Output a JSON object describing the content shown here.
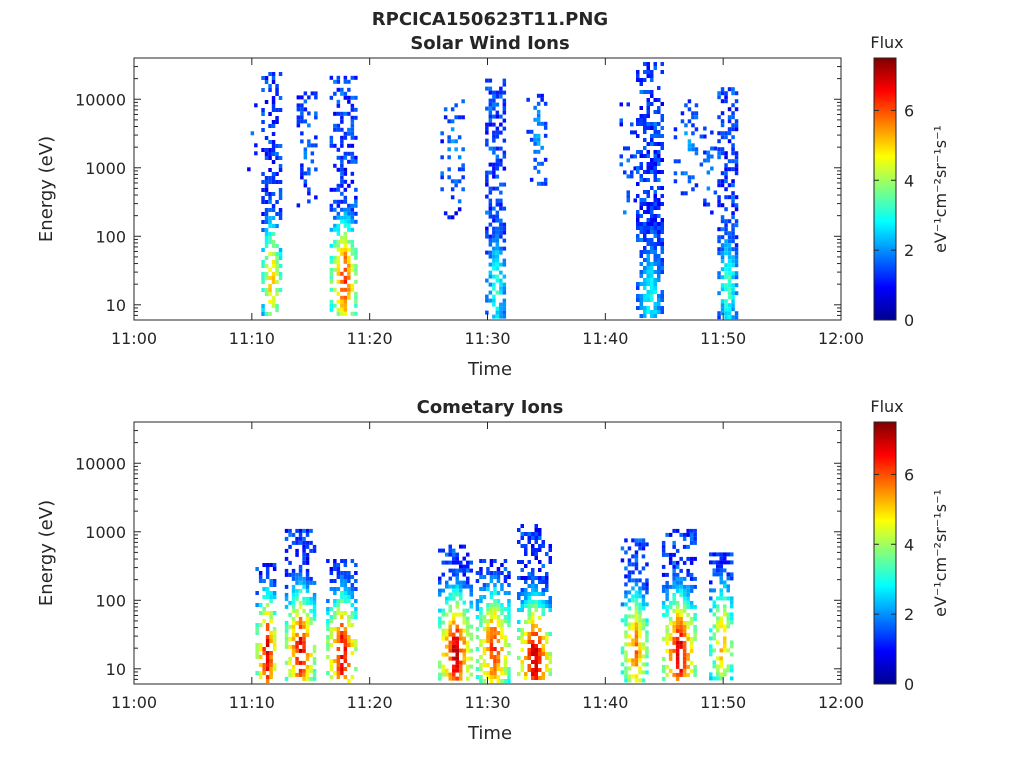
{
  "figure": {
    "title": "RPCICA150623T11.PNG"
  },
  "colorscale": {
    "name": "jet",
    "stops": [
      "#00008f",
      "#0000ff",
      "#0080ff",
      "#00ffff",
      "#80ff80",
      "#ffff00",
      "#ff8000",
      "#ff0000",
      "#800000"
    ]
  },
  "chart_data": [
    {
      "type": "heatmap",
      "title": "Solar Wind Ions",
      "xlabel": "Time",
      "ylabel": "Energy (eV)",
      "xlim_minutes": [
        0,
        60
      ],
      "x_ticks": [
        "11:00",
        "11:10",
        "11:20",
        "11:30",
        "11:40",
        "11:50",
        "12:00"
      ],
      "yscale": "log",
      "ylim": [
        6,
        40000
      ],
      "y_ticks": [
        {
          "value": 10,
          "label": "10"
        },
        {
          "value": 100,
          "label": "100"
        },
        {
          "value": 1000,
          "label": "1000"
        },
        {
          "value": 10000,
          "label": "10000"
        }
      ],
      "colorbar": {
        "title": "Flux",
        "label": "eV⁻¹cm⁻²sr⁻¹s⁻¹",
        "min": 0,
        "max": 7.5,
        "ticks": [
          "0",
          "2",
          "4",
          "6"
        ]
      },
      "bursts": [
        {
          "t0": 10.8,
          "t1": 12.3,
          "emin": 7,
          "emax": 25000,
          "peak_energy": 25,
          "peak_value": 5.5,
          "density": 0.75
        },
        {
          "t0": 13.8,
          "t1": 15.5,
          "emin": 300,
          "emax": 13000,
          "peak_energy": 2000,
          "peak_value": 2.0,
          "density": 0.3
        },
        {
          "t0": 16.6,
          "t1": 18.8,
          "emin": 7,
          "emax": 22000,
          "peak_energy": 25,
          "peak_value": 6.5,
          "density": 0.75
        },
        {
          "t0": 26.0,
          "t1": 28.0,
          "emin": 200,
          "emax": 10000,
          "peak_energy": 2000,
          "peak_value": 2.2,
          "density": 0.25
        },
        {
          "t0": 29.8,
          "t1": 31.5,
          "emin": 7,
          "emax": 20000,
          "peak_energy": 20,
          "peak_value": 3.2,
          "density": 0.8
        },
        {
          "t0": 33.3,
          "t1": 35.0,
          "emin": 500,
          "emax": 12000,
          "peak_energy": 3000,
          "peak_value": 2.2,
          "density": 0.3
        },
        {
          "t0": 41.2,
          "t1": 42.4,
          "emin": 200,
          "emax": 9000,
          "peak_energy": 1000,
          "peak_value": 1.8,
          "density": 0.2
        },
        {
          "t0": 42.6,
          "t1": 44.8,
          "emin": 7,
          "emax": 35000,
          "peak_energy": 15,
          "peak_value": 3.0,
          "density": 0.85
        },
        {
          "t0": 45.8,
          "t1": 47.8,
          "emin": 400,
          "emax": 10000,
          "peak_energy": 2000,
          "peak_value": 2.2,
          "density": 0.3
        },
        {
          "t0": 48.0,
          "t1": 49.4,
          "emin": 200,
          "emax": 6000,
          "peak_energy": 1000,
          "peak_value": 2.0,
          "density": 0.2
        },
        {
          "t0": 49.5,
          "t1": 51.0,
          "emin": 7,
          "emax": 15000,
          "peak_energy": 20,
          "peak_value": 3.5,
          "density": 0.8
        },
        {
          "t0": 9.3,
          "t1": 10.5,
          "emin": 1000,
          "emax": 10000,
          "peak_energy": 3000,
          "peak_value": 1.5,
          "density": 0.05
        }
      ]
    },
    {
      "type": "heatmap",
      "title": "Cometary Ions",
      "xlabel": "Time",
      "ylabel": "Energy (eV)",
      "xlim_minutes": [
        0,
        60
      ],
      "x_ticks": [
        "11:00",
        "11:10",
        "11:20",
        "11:30",
        "11:40",
        "11:50",
        "12:00"
      ],
      "yscale": "log",
      "ylim": [
        6,
        40000
      ],
      "y_ticks": [
        {
          "value": 10,
          "label": "10"
        },
        {
          "value": 100,
          "label": "100"
        },
        {
          "value": 1000,
          "label": "1000"
        },
        {
          "value": 10000,
          "label": "10000"
        }
      ],
      "colorbar": {
        "title": "Flux",
        "label": "eV⁻¹cm⁻²sr⁻¹s⁻¹",
        "min": 0,
        "max": 7.5,
        "ticks": [
          "0",
          "2",
          "4",
          "6"
        ]
      },
      "bursts": [
        {
          "t0": 10.3,
          "t1": 12.0,
          "emin": 7,
          "emax": 350,
          "peak_energy": 18,
          "peak_value": 7.0,
          "density": 0.75
        },
        {
          "t0": 12.8,
          "t1": 15.2,
          "emin": 7,
          "emax": 1100,
          "peak_energy": 20,
          "peak_value": 7.0,
          "density": 0.7
        },
        {
          "t0": 16.3,
          "t1": 18.8,
          "emin": 7,
          "emax": 400,
          "peak_energy": 18,
          "peak_value": 7.0,
          "density": 0.7
        },
        {
          "t0": 25.8,
          "t1": 28.5,
          "emin": 7,
          "emax": 650,
          "peak_energy": 18,
          "peak_value": 7.2,
          "density": 0.8
        },
        {
          "t0": 29.0,
          "t1": 31.8,
          "emin": 7,
          "emax": 400,
          "peak_energy": 20,
          "peak_value": 6.5,
          "density": 0.75
        },
        {
          "t0": 32.5,
          "t1": 35.2,
          "emin": 7,
          "emax": 1300,
          "peak_energy": 15,
          "peak_value": 7.2,
          "density": 0.75
        },
        {
          "t0": 41.3,
          "t1": 43.5,
          "emin": 7,
          "emax": 800,
          "peak_energy": 20,
          "peak_value": 6.0,
          "density": 0.7
        },
        {
          "t0": 44.8,
          "t1": 47.5,
          "emin": 7,
          "emax": 1100,
          "peak_energy": 18,
          "peak_value": 7.2,
          "density": 0.75
        },
        {
          "t0": 48.8,
          "t1": 50.8,
          "emin": 7,
          "emax": 500,
          "peak_energy": 25,
          "peak_value": 5.5,
          "density": 0.6
        }
      ]
    }
  ]
}
